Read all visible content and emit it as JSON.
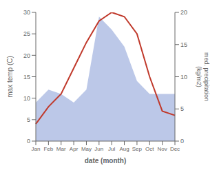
{
  "chart_data": {
    "type": "line",
    "categories": [
      "Jan",
      "Feb",
      "Mar",
      "Apr",
      "May",
      "Jun",
      "Jul",
      "Aug",
      "Sep",
      "Oct",
      "Nov",
      "Dec"
    ],
    "xlabel": "date (month)",
    "ylabel": "max temp (C)",
    "y2label": "med. precipitation\n(kg/m2)",
    "ylim": [
      0,
      30
    ],
    "yticks": [
      0,
      5,
      10,
      15,
      20,
      25,
      30
    ],
    "y2lim": [
      0,
      20
    ],
    "y2ticks": [
      0,
      5,
      10,
      15,
      20
    ],
    "grid": false,
    "series": [
      {
        "type": "area",
        "color": "#bcc8e8",
        "values": [
          9,
          12,
          11,
          9,
          12,
          29,
          26,
          22,
          14,
          11,
          11,
          11
        ]
      },
      {
        "type": "line",
        "color": "#c0392b",
        "values": [
          4,
          8,
          11,
          17,
          23,
          28,
          30,
          29,
          25,
          15,
          7,
          6
        ]
      }
    ]
  }
}
